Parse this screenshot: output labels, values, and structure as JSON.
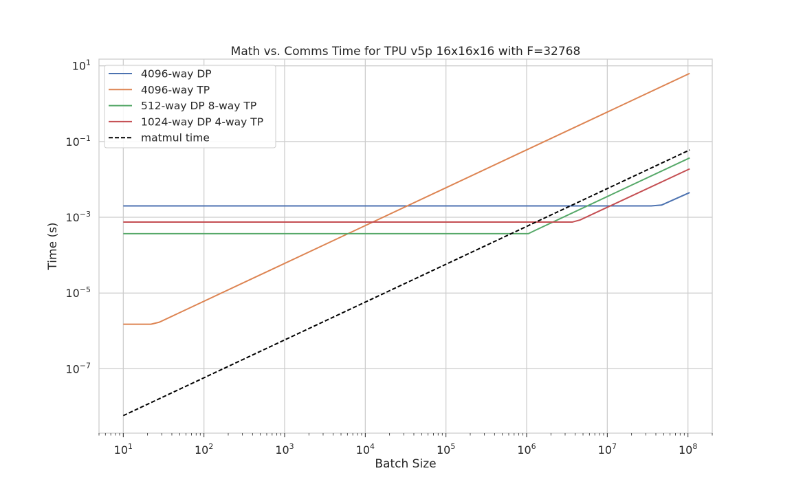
{
  "chart_data": {
    "type": "line",
    "title": "Math vs. Comms Time for TPU v5p 16x16x16 with F=32768",
    "xlabel": "Batch Size",
    "ylabel": "Time (s)",
    "xscale": "log",
    "yscale": "log",
    "xlim": [
      5,
      200000000
    ],
    "ylim": [
      2e-09,
      15
    ],
    "grid": true,
    "legend_position": "upper-left",
    "x_ticks": [
      {
        "value": 10,
        "base": "10",
        "exp": "1"
      },
      {
        "value": 100,
        "base": "10",
        "exp": "2"
      },
      {
        "value": 1000,
        "base": "10",
        "exp": "3"
      },
      {
        "value": 10000,
        "base": "10",
        "exp": "4"
      },
      {
        "value": 100000,
        "base": "10",
        "exp": "5"
      },
      {
        "value": 1000000,
        "base": "10",
        "exp": "6"
      },
      {
        "value": 10000000,
        "base": "10",
        "exp": "7"
      },
      {
        "value": 100000000,
        "base": "10",
        "exp": "8"
      }
    ],
    "y_ticks": [
      {
        "value": 10,
        "base": "10",
        "exp": "1"
      },
      {
        "value": 0.1,
        "base": "10",
        "exp": "−1"
      },
      {
        "value": 0.001,
        "base": "10",
        "exp": "−3"
      },
      {
        "value": 1e-05,
        "base": "10",
        "exp": "−5"
      },
      {
        "value": 1e-07,
        "base": "10",
        "exp": "−7"
      }
    ],
    "series": [
      {
        "name": "4096-way DP",
        "color": "#4c72b0",
        "dash": false,
        "points": [
          [
            10,
            0.002
          ],
          [
            35000000,
            0.002
          ],
          [
            47000000,
            0.0021
          ],
          [
            105000000,
            0.0045
          ]
        ]
      },
      {
        "name": "4096-way TP",
        "color": "#dd8452",
        "dash": false,
        "points": [
          [
            10,
            1.5e-06
          ],
          [
            22,
            1.5e-06
          ],
          [
            28,
            1.7e-06
          ],
          [
            105000000,
            6.3
          ]
        ]
      },
      {
        "name": "512-way DP 8-way TP",
        "color": "#55a868",
        "dash": false,
        "points": [
          [
            10,
            0.00037
          ],
          [
            1050000,
            0.00037
          ],
          [
            1300000,
            0.00046
          ],
          [
            105000000,
            0.037
          ]
        ]
      },
      {
        "name": "1024-way DP 4-way TP",
        "color": "#c44e52",
        "dash": false,
        "points": [
          [
            10,
            0.00075
          ],
          [
            3700000,
            0.00075
          ],
          [
            4600000,
            0.00085
          ],
          [
            105000000,
            0.019
          ]
        ]
      },
      {
        "name": "matmul time",
        "color": "#000000",
        "dash": true,
        "points": [
          [
            10,
            5.8e-09
          ],
          [
            105000000,
            0.06
          ]
        ]
      }
    ]
  }
}
